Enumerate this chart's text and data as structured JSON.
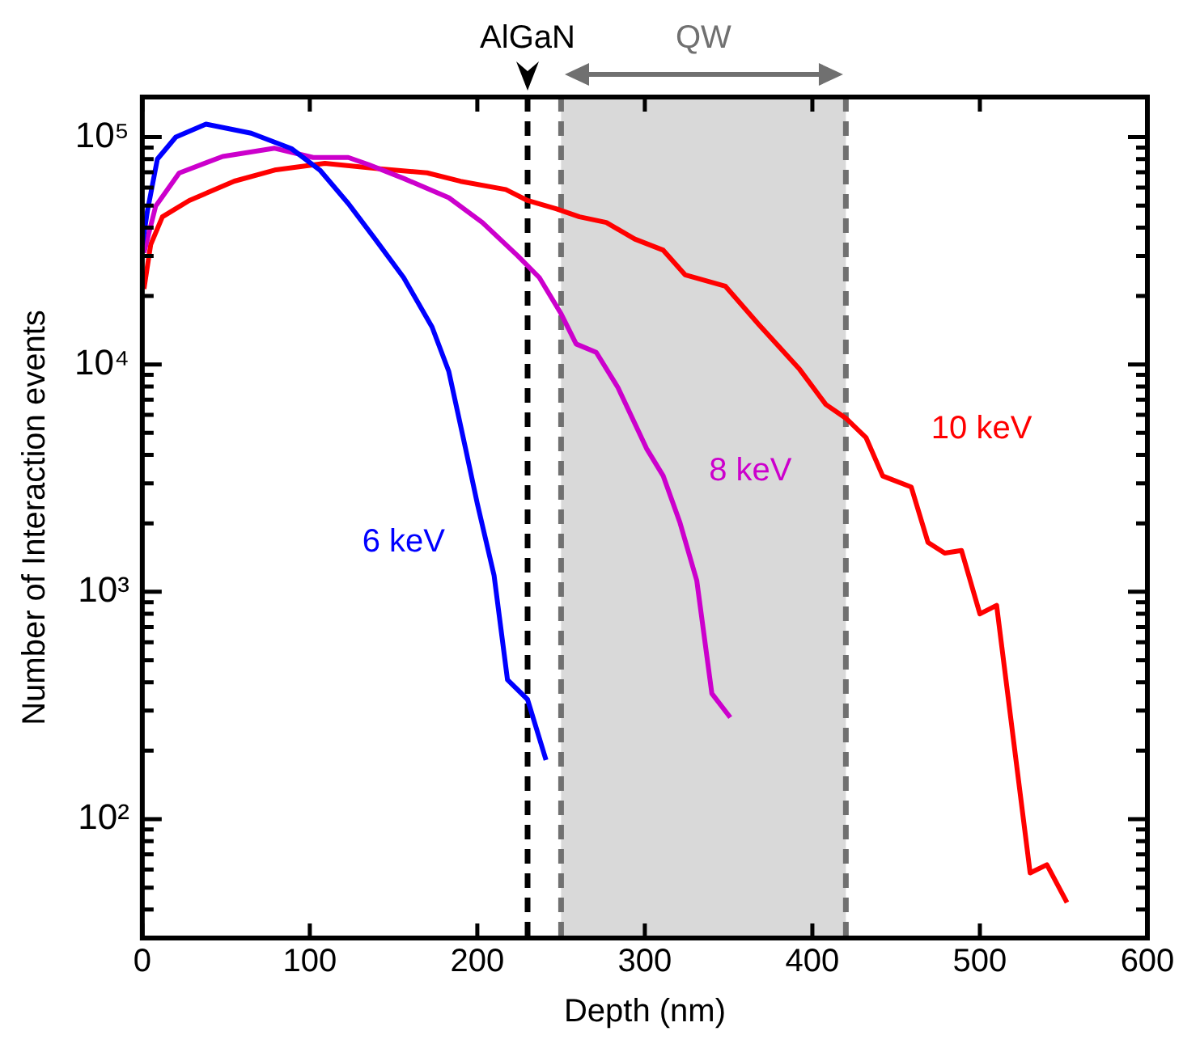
{
  "chart_data": {
    "type": "line",
    "xlabel": "Depth (nm)",
    "ylabel": "Number of Interaction events",
    "xlim": [
      0,
      600
    ],
    "xticks": [
      0,
      100,
      200,
      300,
      400,
      500,
      600
    ],
    "ylim": [
      30,
      150000
    ],
    "yticks": [
      {
        "value": 100,
        "label": "10²"
      },
      {
        "value": 1000,
        "label": "10³"
      },
      {
        "value": 10000,
        "label": "10⁴"
      },
      {
        "value": 100000,
        "label": "10⁵"
      }
    ],
    "log": "y",
    "grid": false,
    "legend": false,
    "marker": "none",
    "line_style": "solid",
    "series": [
      {
        "name": "6 keV",
        "color": "#0000ff",
        "x": [
          0,
          3,
          9,
          20,
          38,
          65,
          89,
          106,
          123,
          139,
          156,
          173,
          183,
          193,
          200,
          210,
          218,
          230,
          241
        ],
        "values": [
          33600,
          47000,
          80000,
          100000,
          114000,
          104000,
          89000,
          71600,
          51000,
          35600,
          24100,
          14600,
          9300,
          4260,
          2440,
          1180,
          410,
          336,
          182
        ]
      },
      {
        "name": "8 keV",
        "color": "#cc00cc",
        "x": [
          1,
          8,
          22,
          48,
          79,
          102,
          123,
          135,
          156,
          183,
          203,
          224,
          237,
          250,
          259,
          271,
          284,
          301,
          311,
          321,
          331,
          340,
          351
        ],
        "values": [
          31000,
          49700,
          69500,
          82200,
          89300,
          81300,
          81300,
          75700,
          65800,
          54100,
          42100,
          30100,
          24100,
          16700,
          12300,
          11300,
          7900,
          4270,
          3230,
          2010,
          1120,
          357,
          280
        ]
      },
      {
        "name": "10 keV",
        "color": "#ff0000",
        "x": [
          1,
          5,
          12,
          28,
          55,
          79,
          109,
          143,
          170,
          190,
          217,
          230,
          247,
          261,
          277,
          294,
          311,
          324,
          348,
          368,
          392,
          408,
          420,
          432,
          442,
          459,
          469,
          479,
          489,
          500,
          510,
          530,
          540,
          552
        ],
        "values": [
          21500,
          33600,
          44600,
          52600,
          64000,
          71600,
          76600,
          72400,
          69600,
          63900,
          58800,
          52600,
          48400,
          44600,
          42100,
          35600,
          31800,
          24800,
          22100,
          15000,
          9600,
          6670,
          5800,
          4770,
          3230,
          2890,
          1650,
          1480,
          1520,
          800,
          871,
          58,
          63,
          43
        ]
      }
    ],
    "ref_lines": [
      {
        "axis": "x",
        "value": 230,
        "label": "AlGaN",
        "color": "#000000",
        "line_style": "dashed"
      },
      {
        "axis": "x",
        "value": 250,
        "color": "#707070",
        "line_style": "dashed"
      },
      {
        "axis": "x",
        "value": 420,
        "color": "#707070",
        "line_style": "dashed"
      }
    ],
    "bands": [
      {
        "axis": "x",
        "from": 250,
        "to": 420,
        "label": "QW",
        "color": "#d9d9d9"
      }
    ]
  }
}
